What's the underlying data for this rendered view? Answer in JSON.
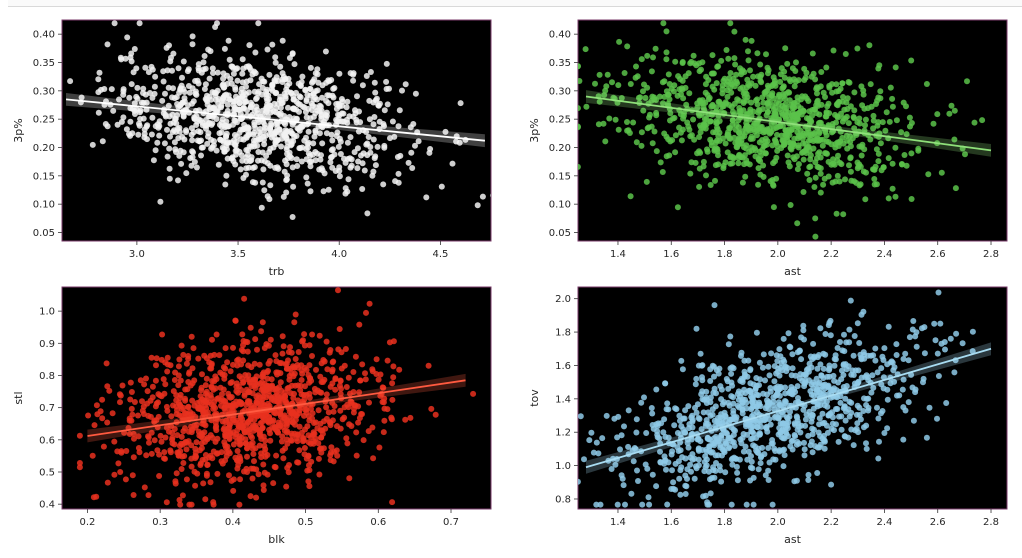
{
  "chart_data": [
    {
      "type": "scatter",
      "xlabel": "trb",
      "ylabel": "3p%",
      "xlim": [
        2.63,
        4.75
      ],
      "ylim": [
        0.035,
        0.425
      ],
      "xticks": [
        "3.0",
        "3.5",
        "4.0",
        "4.5"
      ],
      "yticks": [
        "0.05",
        "0.10",
        "0.15",
        "0.20",
        "0.25",
        "0.30",
        "0.35",
        "0.40"
      ],
      "point_color": "#f2f2f2",
      "line_color": "#ffffff",
      "n_points": 1000,
      "x_mean": 3.6,
      "x_sd": 0.37,
      "y_mean": 0.25,
      "y_sd": 0.055,
      "regression": {
        "x": [
          2.65,
          4.72
        ],
        "y": [
          0.285,
          0.212
        ]
      }
    },
    {
      "type": "scatter",
      "xlabel": "ast",
      "ylabel": "3p%",
      "xlim": [
        1.25,
        2.86
      ],
      "ylim": [
        0.035,
        0.425
      ],
      "xticks": [
        "1.4",
        "1.6",
        "1.8",
        "2.0",
        "2.2",
        "2.4",
        "2.6",
        "2.8"
      ],
      "yticks": [
        "0.05",
        "0.10",
        "0.15",
        "0.20",
        "0.25",
        "0.30",
        "0.35",
        "0.40"
      ],
      "point_color": "#5bc24a",
      "line_color": "#8fe07a",
      "n_points": 1000,
      "x_mean": 1.95,
      "x_sd": 0.28,
      "y_mean": 0.25,
      "y_sd": 0.055,
      "regression": {
        "x": [
          1.28,
          2.8
        ],
        "y": [
          0.29,
          0.195
        ]
      }
    },
    {
      "type": "scatter",
      "xlabel": "blk",
      "ylabel": "stl",
      "xlim": [
        0.165,
        0.755
      ],
      "ylim": [
        0.385,
        1.075
      ],
      "xticks": [
        "0.2",
        "0.3",
        "0.4",
        "0.5",
        "0.6",
        "0.7"
      ],
      "yticks": [
        "0.4",
        "0.5",
        "0.6",
        "0.7",
        "0.8",
        "0.9",
        "1.0"
      ],
      "point_color": "#e8301e",
      "line_color": "#ff5a40",
      "n_points": 1100,
      "x_mean": 0.42,
      "x_sd": 0.09,
      "y_mean": 0.68,
      "y_sd": 0.11,
      "regression": {
        "x": [
          0.2,
          0.72
        ],
        "y": [
          0.612,
          0.785
        ]
      }
    },
    {
      "type": "scatter",
      "xlabel": "ast",
      "ylabel": "tov",
      "xlim": [
        1.25,
        2.86
      ],
      "ylim": [
        0.74,
        2.07
      ],
      "xticks": [
        "1.4",
        "1.6",
        "1.8",
        "2.0",
        "2.2",
        "2.4",
        "2.6",
        "2.8"
      ],
      "yticks": [
        "0.8",
        "1.0",
        "1.2",
        "1.4",
        "1.6",
        "1.8",
        "2.0"
      ],
      "point_color": "#8ec9e6",
      "line_color": "#a8dcf2",
      "n_points": 1000,
      "x_mean": 1.95,
      "x_sd": 0.28,
      "y_mean": 1.3,
      "y_sd": 0.2,
      "regression": {
        "x": [
          1.28,
          2.8
        ],
        "y": [
          0.99,
          1.7
        ]
      }
    }
  ]
}
